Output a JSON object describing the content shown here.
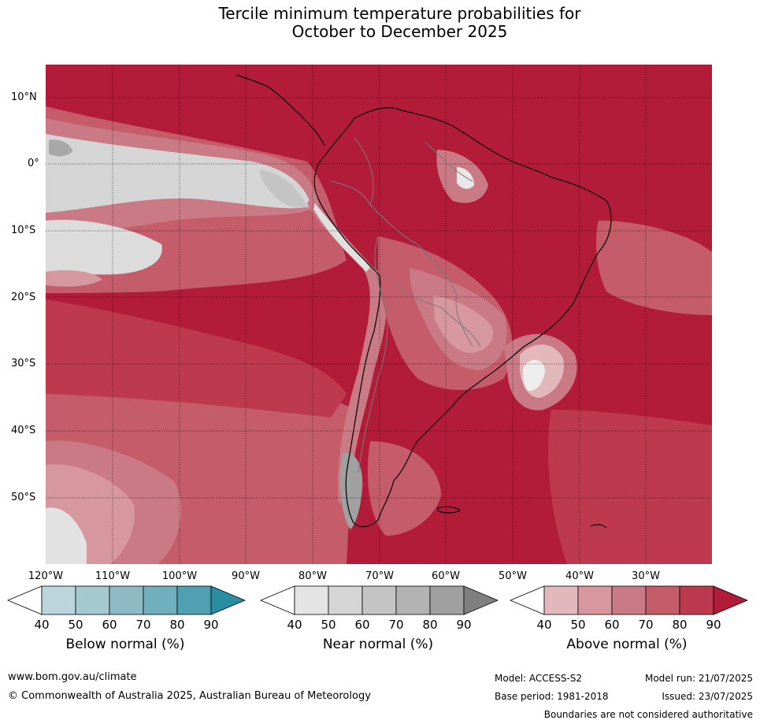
{
  "title": {
    "line1": "Tercile minimum temperature probabilities for",
    "line2": "October to December 2025"
  },
  "map": {
    "lat_labels": [
      "10°N",
      "0°",
      "10°S",
      "20°S",
      "30°S",
      "40°S",
      "50°S"
    ],
    "lon_labels": [
      "120°W",
      "110°W",
      "100°W",
      "90°W",
      "80°W",
      "70°W",
      "60°W",
      "50°W",
      "40°W",
      "30°W"
    ]
  },
  "colorbars": [
    {
      "title": "Below normal (%)",
      "ticks": [
        "40",
        "50",
        "60",
        "70",
        "80",
        "90"
      ],
      "colors": [
        "#ffffff",
        "#bcd5dc",
        "#a5c9d1",
        "#8ebac6",
        "#72afbc",
        "#4fa1b1",
        "#2a8ea3"
      ]
    },
    {
      "title": "Near normal (%)",
      "ticks": [
        "40",
        "50",
        "60",
        "70",
        "80",
        "90"
      ],
      "colors": [
        "#ffffff",
        "#e4e4e4",
        "#d5d5d5",
        "#c4c4c4",
        "#b3b3b3",
        "#a0a0a0",
        "#7f7f7f"
      ]
    },
    {
      "title": "Above normal (%)",
      "ticks": [
        "40",
        "50",
        "60",
        "70",
        "80",
        "90"
      ],
      "colors": [
        "#ffffff",
        "#e2b8bd",
        "#d7979f",
        "#c97a84",
        "#c45c6a",
        "#bd3a4e",
        "#b31c39"
      ]
    }
  ],
  "footer": {
    "url": "www.bom.gov.au/climate",
    "copyright": "© Commonwealth of Australia 2025, Australian Bureau of Meteorology",
    "model": "Model: ACCESS-S2",
    "model_run": "Model run: 21/07/2025",
    "base_period": "Base period: 1981-2018",
    "issued": "Issued: 23/07/2025",
    "disclaimer": "Boundaries are not considered authoritative"
  }
}
